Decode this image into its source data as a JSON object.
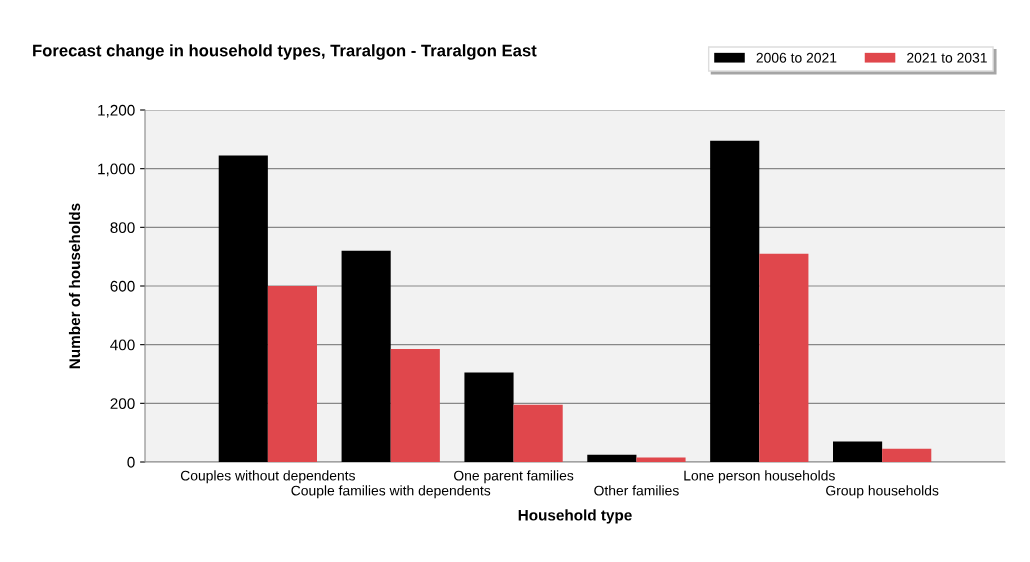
{
  "chart_data": {
    "type": "bar",
    "title": "Forecast change in household types, Traralgon - Traralgon East",
    "xlabel": "Household type",
    "ylabel": "Number of households",
    "categories": [
      "Couples without dependents",
      "Couple families with dependents",
      "One parent families",
      "Other families",
      "Lone person households",
      "Group households"
    ],
    "series": [
      {
        "name": "2006 to 2021",
        "color": "#000000",
        "values": [
          1045,
          720,
          305,
          25,
          1095,
          70
        ]
      },
      {
        "name": "2021 to 2031",
        "color": "#e0474c",
        "values": [
          600,
          385,
          195,
          15,
          710,
          45
        ]
      }
    ],
    "ylim": [
      0,
      1200
    ],
    "yticks": [
      0,
      {
        "value": 200,
        "label": "200"
      },
      {
        "value": 400,
        "label": "400"
      },
      {
        "value": 600,
        "label": "600"
      },
      {
        "value": 800,
        "label": "800"
      },
      {
        "value": 1000,
        "label": "1,000"
      },
      {
        "value": 1200,
        "label": "1,200"
      }
    ],
    "grid": "y",
    "legend": "top right"
  }
}
